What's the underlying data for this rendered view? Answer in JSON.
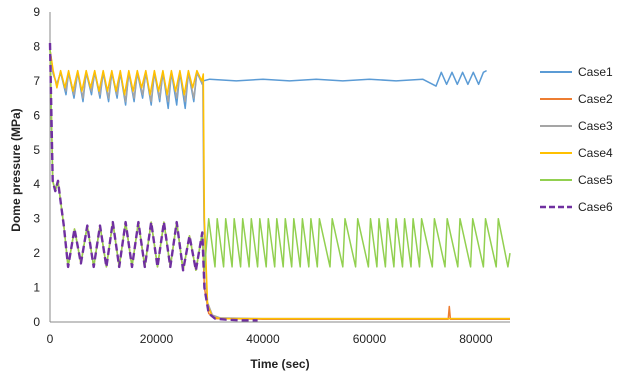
{
  "chart_data": {
    "type": "line",
    "title": "",
    "xlabel": "Time (sec)",
    "ylabel": "Dome pressure (MPa)",
    "xlim": [
      0,
      86400
    ],
    "ylim": [
      0,
      9
    ],
    "x_ticks": [
      0,
      20000,
      40000,
      60000,
      80000
    ],
    "y_ticks": [
      0,
      1,
      2,
      3,
      4,
      5,
      6,
      7,
      8,
      9
    ],
    "grid": false,
    "legend_position": "right",
    "series": [
      {
        "name": "Case1",
        "color": "#5b9bd5",
        "dash": "solid",
        "x": [
          0,
          600,
          1300,
          2000,
          3000,
          3500,
          4500,
          5200,
          6200,
          6800,
          7800,
          8400,
          9400,
          10000,
          11000,
          11600,
          12600,
          13200,
          14200,
          14800,
          15800,
          16400,
          17400,
          18000,
          19000,
          19600,
          20600,
          21200,
          22200,
          22800,
          23800,
          24400,
          25400,
          26000,
          27000,
          27600,
          28600,
          28800,
          30000,
          35000,
          40000,
          45000,
          50000,
          55000,
          60000,
          65000,
          70000,
          72500,
          73500,
          74500,
          75500,
          76500,
          77500,
          78500,
          79500,
          80500,
          81400,
          82000
        ],
        "y": [
          7.9,
          7.2,
          6.9,
          7.25,
          6.6,
          7.25,
          6.5,
          7.25,
          6.4,
          7.25,
          6.6,
          7.25,
          6.5,
          7.25,
          6.4,
          7.25,
          6.5,
          7.25,
          6.3,
          7.25,
          6.4,
          7.25,
          6.5,
          7.25,
          6.3,
          7.25,
          6.4,
          7.25,
          6.2,
          7.25,
          6.3,
          7.25,
          6.2,
          7.25,
          6.4,
          7.25,
          6.9,
          7.0,
          7.05,
          7.0,
          7.05,
          7.0,
          7.05,
          7.0,
          7.05,
          7.0,
          7.05,
          6.85,
          7.25,
          6.9,
          7.25,
          6.9,
          7.25,
          6.9,
          7.25,
          6.9,
          7.25,
          7.3
        ]
      },
      {
        "name": "Case2",
        "color": "#ed7d31",
        "dash": "solid",
        "x": [
          0,
          500,
          1000,
          1500,
          2000,
          2600,
          3400,
          4600,
          5800,
          7000,
          8200,
          9400,
          10600,
          11800,
          13000,
          14200,
          15400,
          16600,
          17800,
          19000,
          20200,
          21400,
          22600,
          23800,
          25000,
          26200,
          27400,
          28600,
          29000,
          29800,
          31000,
          33000,
          40000,
          50000,
          60000,
          70000,
          74800,
          75000,
          75200,
          76000,
          86400
        ],
        "y": [
          8.1,
          4.1,
          3.8,
          4.1,
          3.5,
          2.8,
          1.6,
          2.7,
          1.7,
          2.8,
          1.6,
          2.8,
          1.6,
          2.9,
          1.6,
          2.9,
          1.6,
          2.9,
          1.6,
          2.9,
          1.6,
          2.9,
          1.6,
          2.9,
          1.5,
          2.5,
          1.5,
          2.6,
          1.0,
          0.25,
          0.1,
          0.1,
          0.08,
          0.08,
          0.08,
          0.08,
          0.08,
          0.45,
          0.08,
          0.08,
          0.08
        ]
      },
      {
        "name": "Case3",
        "color": "#a5a5a5",
        "dash": "solid",
        "x": [
          0,
          600,
          1300,
          2000,
          3000,
          3500,
          4500,
          5200,
          6200,
          6800,
          7800,
          8400,
          9400,
          10000,
          11000,
          11600,
          12600,
          13200,
          14200,
          14800,
          15800,
          16400,
          17400,
          18000,
          19000,
          19600,
          20600,
          21200,
          22200,
          22800,
          23800,
          24400,
          25400,
          26000,
          27000,
          27600,
          28700,
          28900,
          29500,
          30500,
          32000,
          40000,
          60000,
          86400
        ],
        "y": [
          7.9,
          7.2,
          6.9,
          7.25,
          6.7,
          7.25,
          6.6,
          7.25,
          6.5,
          7.25,
          6.7,
          7.25,
          6.6,
          7.25,
          6.5,
          7.25,
          6.6,
          7.25,
          6.4,
          7.25,
          6.5,
          7.25,
          6.6,
          7.25,
          6.4,
          7.25,
          6.5,
          7.25,
          6.4,
          7.25,
          6.5,
          7.25,
          6.4,
          7.25,
          6.5,
          7.25,
          6.9,
          3.0,
          0.6,
          0.2,
          0.12,
          0.1,
          0.1,
          0.1
        ]
      },
      {
        "name": "Case4",
        "color": "#ffc000",
        "dash": "solid",
        "x": [
          0,
          600,
          1300,
          2000,
          2800,
          3500,
          4300,
          5200,
          6000,
          6800,
          7600,
          8400,
          9200,
          10000,
          10800,
          11600,
          12400,
          13200,
          14000,
          14800,
          15600,
          16400,
          17200,
          18000,
          18800,
          19600,
          20400,
          21200,
          22000,
          22800,
          23600,
          24400,
          25200,
          26000,
          26800,
          27600,
          28500,
          28800,
          29000,
          29600,
          30500,
          32000,
          40000,
          60000,
          86400
        ],
        "y": [
          7.9,
          7.3,
          6.8,
          7.3,
          6.8,
          7.3,
          6.7,
          7.3,
          6.7,
          7.3,
          6.8,
          7.3,
          6.7,
          7.3,
          6.7,
          7.3,
          6.7,
          7.3,
          6.6,
          7.3,
          6.7,
          7.3,
          6.8,
          7.3,
          6.6,
          7.3,
          6.7,
          7.3,
          6.6,
          7.3,
          6.7,
          7.3,
          6.6,
          7.3,
          6.8,
          7.3,
          7.0,
          7.2,
          3.0,
          0.5,
          0.15,
          0.1,
          0.1,
          0.1,
          0.1
        ]
      },
      {
        "name": "Case5",
        "color": "#92d050",
        "dash": "solid",
        "x": [
          0,
          500,
          1000,
          1500,
          2000,
          2600,
          3400,
          4600,
          5800,
          7000,
          8200,
          9400,
          10600,
          11800,
          13000,
          14200,
          15400,
          16600,
          17800,
          19000,
          20200,
          21400,
          22600,
          23800,
          25000,
          26200,
          27400,
          28600,
          29000,
          29800,
          31000,
          31400,
          32600,
          33000,
          34200,
          34600,
          35800,
          36200,
          37400,
          37800,
          39000,
          39400,
          40600,
          41000,
          42200,
          42600,
          43800,
          44200,
          45400,
          45800,
          47000,
          47400,
          48600,
          49000,
          50200,
          50600,
          52600,
          53000,
          55000,
          55400,
          57400,
          57800,
          59800,
          60200,
          61400,
          61800,
          63000,
          63400,
          64600,
          65000,
          66200,
          66600,
          67800,
          68200,
          69400,
          69800,
          71800,
          72200,
          74200,
          74600,
          76600,
          77000,
          79000,
          79400,
          81400,
          81800,
          83800,
          84200,
          86000,
          86400
        ],
        "y": [
          8.1,
          4.1,
          3.8,
          4.1,
          3.5,
          2.8,
          1.6,
          2.7,
          1.7,
          2.8,
          1.6,
          2.8,
          1.6,
          2.9,
          1.6,
          2.9,
          1.6,
          2.9,
          1.6,
          2.9,
          1.6,
          2.9,
          1.6,
          2.9,
          1.5,
          2.5,
          1.5,
          2.6,
          1.5,
          3.0,
          1.6,
          3.0,
          1.6,
          3.0,
          1.6,
          3.0,
          1.6,
          3.0,
          1.6,
          3.0,
          1.6,
          3.0,
          1.6,
          3.0,
          1.6,
          3.0,
          1.6,
          3.0,
          1.6,
          3.0,
          1.6,
          3.0,
          1.6,
          3.0,
          1.6,
          3.0,
          1.6,
          3.0,
          1.6,
          3.0,
          1.6,
          3.0,
          1.6,
          3.0,
          1.6,
          3.0,
          1.6,
          3.0,
          1.6,
          3.0,
          1.6,
          3.0,
          1.6,
          3.0,
          1.6,
          3.0,
          1.6,
          3.0,
          1.6,
          3.0,
          1.6,
          3.0,
          1.6,
          3.0,
          1.6,
          3.0,
          1.6,
          3.0,
          1.6,
          2.0
        ]
      },
      {
        "name": "Case6",
        "color": "#7030a0",
        "dash": "dashed",
        "x": [
          0,
          500,
          1000,
          1500,
          2000,
          2600,
          3400,
          4600,
          5800,
          7000,
          8200,
          9400,
          10600,
          11800,
          13000,
          14200,
          15400,
          16600,
          17800,
          19000,
          20200,
          21400,
          22600,
          23800,
          25000,
          26200,
          27400,
          28600,
          29000,
          29800,
          31000,
          33000,
          36000,
          39000
        ],
        "y": [
          8.1,
          4.1,
          3.8,
          4.1,
          3.5,
          2.8,
          1.6,
          2.7,
          1.7,
          2.8,
          1.6,
          2.8,
          1.6,
          2.9,
          1.6,
          2.9,
          1.6,
          2.9,
          1.6,
          2.9,
          1.6,
          2.9,
          1.6,
          2.9,
          1.5,
          2.5,
          1.5,
          2.6,
          1.0,
          0.25,
          0.1,
          0.07,
          0.05,
          0.05
        ]
      }
    ]
  }
}
